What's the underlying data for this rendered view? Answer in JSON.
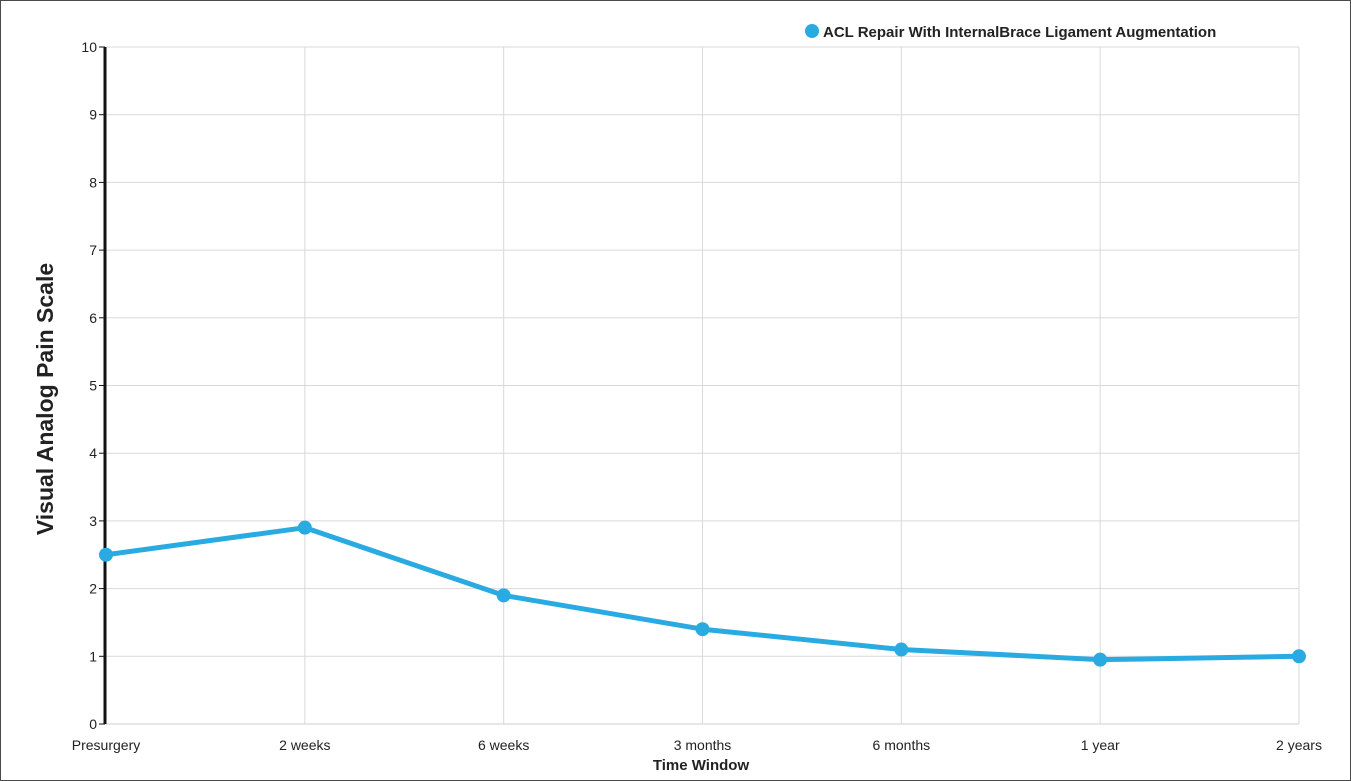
{
  "chart_data": {
    "type": "line",
    "title": "",
    "xlabel": "Time Window",
    "ylabel": "Visual Analog Pain Scale",
    "categories": [
      "Presurgery",
      "2 weeks",
      "6 weeks",
      "3 months",
      "6 months",
      "1 year",
      "2 years"
    ],
    "series": [
      {
        "name": "ACL Repair With InternalBrace Ligament Augmentation",
        "color": "#29abe2",
        "values": [
          2.5,
          2.9,
          1.9,
          1.4,
          1.1,
          0.95,
          1.0
        ]
      }
    ],
    "ylim": [
      0,
      10
    ],
    "yticks": [
      0,
      1,
      2,
      3,
      4,
      5,
      6,
      7,
      8,
      9,
      10
    ],
    "grid": true,
    "legend_position": "top-right"
  }
}
